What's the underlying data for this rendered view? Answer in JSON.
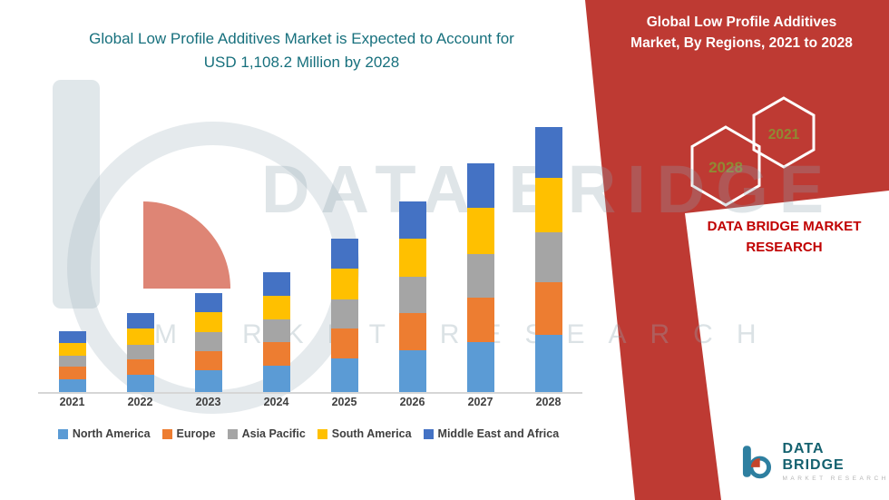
{
  "header": {
    "left_title_line1": "Global Low Profile Additives Market is Expected to Account for",
    "left_title_line2": "USD 1,108.2 Million by 2028"
  },
  "banner": {
    "red_color": "#be3a33",
    "title_line1": "Global Low Profile Additives",
    "title_line2": "Market, By Regions, 2021 to 2028",
    "hex_years": [
      "2028",
      "2021"
    ],
    "company_line1": "DATA BRIDGE MARKET",
    "company_line2": "RESEARCH"
  },
  "watermark": {
    "line1": "DATA BRIDGE",
    "line2": "MARKET RESEARCH"
  },
  "logo": {
    "name": "DATA BRIDGE",
    "tagline": "MARKET RESEARCH"
  },
  "colors": {
    "left_title_teal": "#17707d",
    "company_red": "#c00000",
    "hex_year_olive": "#8f8a33"
  },
  "chart_data": {
    "type": "bar",
    "stacked": true,
    "title": "Global Low Profile Additives Market is Expected to Account for USD 1,108.2 Million by 2028",
    "categories": [
      "2021",
      "2022",
      "2023",
      "2024",
      "2025",
      "2026",
      "2027",
      "2028"
    ],
    "series": [
      {
        "name": "North America",
        "color": "#5B9BD5",
        "values": [
          55,
          72,
          90,
          109,
          139,
          173,
          207,
          240
        ]
      },
      {
        "name": "Europe",
        "color": "#ED7D31",
        "values": [
          50,
          65,
          82,
          99,
          127,
          158,
          189,
          219
        ]
      },
      {
        "name": "Asia Pacific",
        "color": "#A5A5A5",
        "values": [
          48,
          62,
          78,
          94,
          121,
          150,
          180,
          209
        ]
      },
      {
        "name": "South America",
        "color": "#FFC000",
        "values": [
          52,
          67,
          84,
          102,
          130,
          162,
          195,
          226
        ]
      },
      {
        "name": "Middle East and Africa",
        "color": "#4472C4",
        "values": [
          49,
          64,
          80,
          97,
          124,
          154,
          185,
          214.2
        ]
      }
    ],
    "totals_note": [
      254,
      330,
      414,
      501,
      641,
      797,
      956,
      1108.2
    ],
    "ylim": [
      0,
      1210
    ],
    "grid": false,
    "legend_position": "bottom",
    "xlabel": "",
    "ylabel": ""
  }
}
